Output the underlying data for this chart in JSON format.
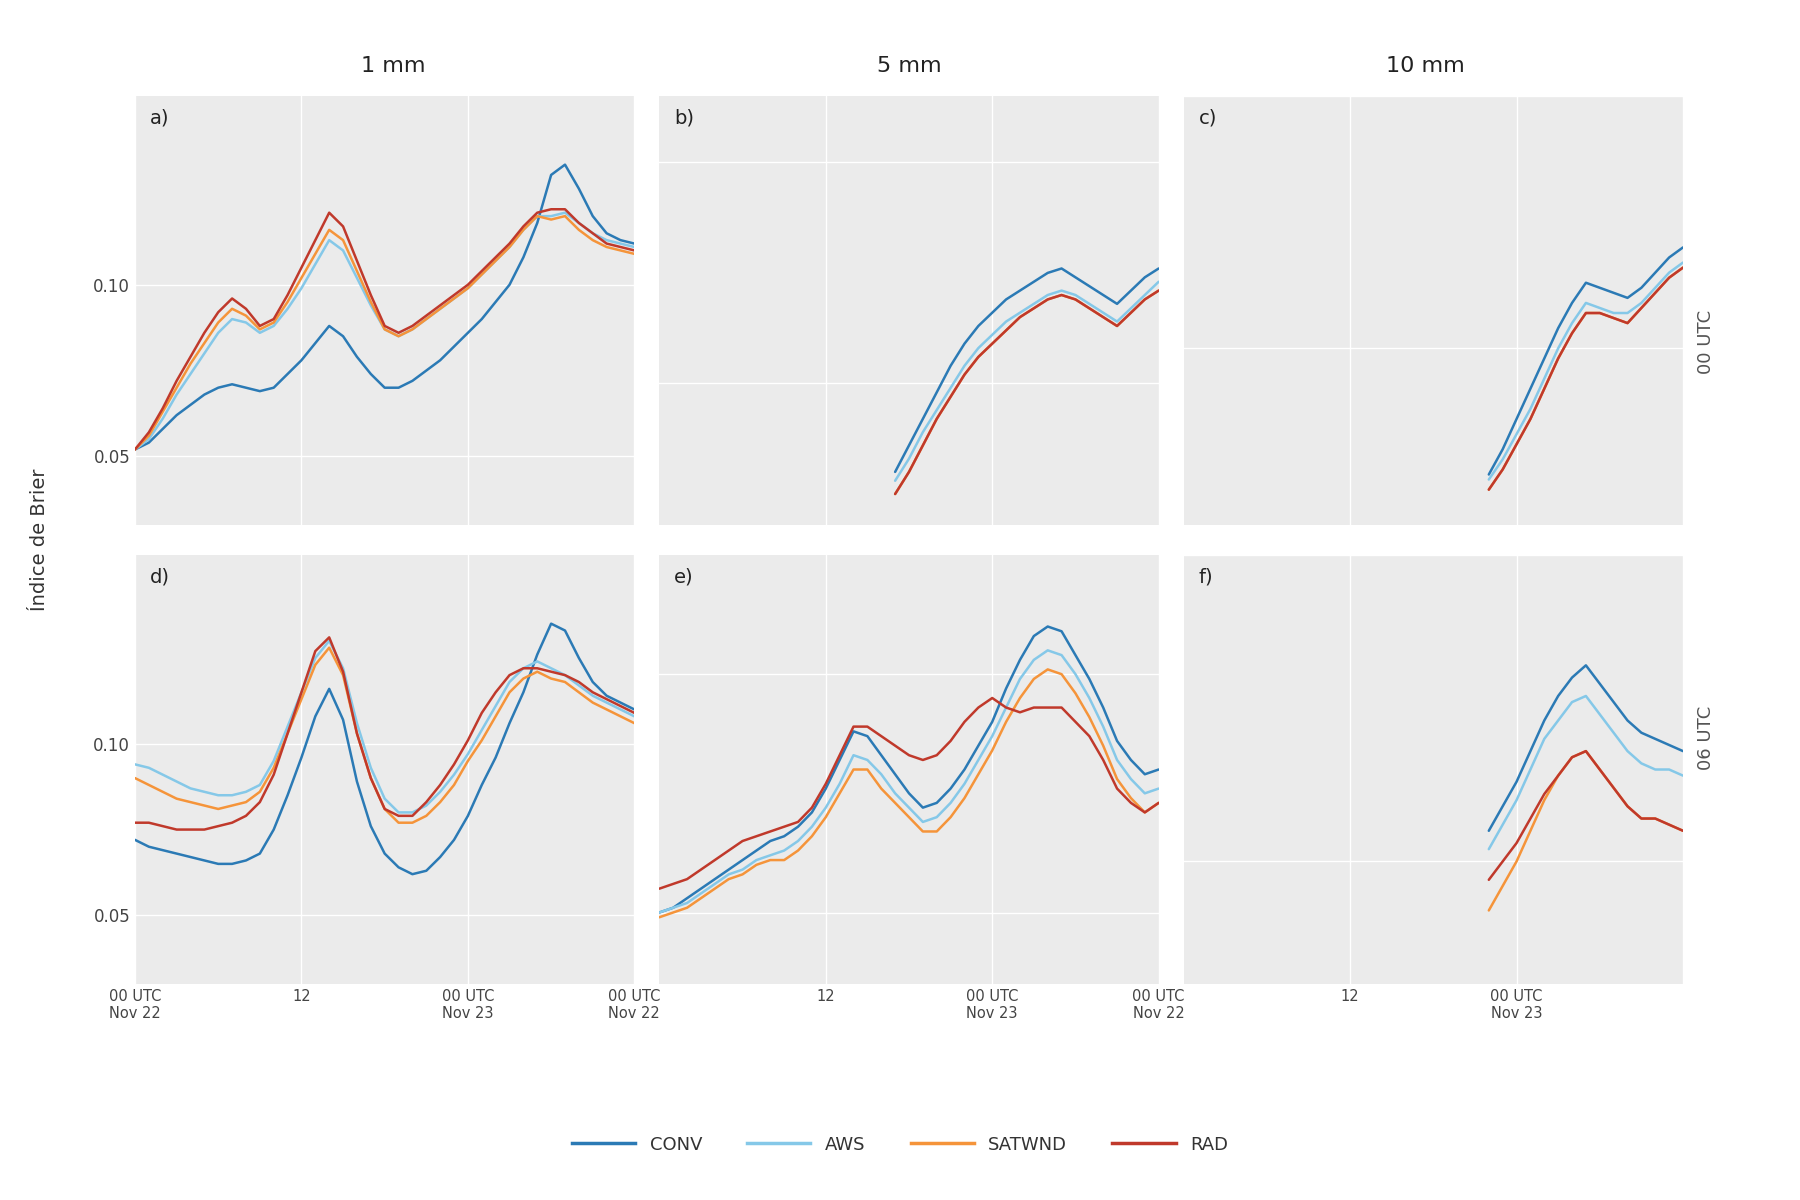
{
  "col_titles": [
    "1 mm",
    "5 mm",
    "10 mm"
  ],
  "row_labels": [
    "00 UTC",
    "06 UTC"
  ],
  "ylabel": "Índice de Brier",
  "line_colors": {
    "CONV": "#2b7ab5",
    "AWS": "#85c8e8",
    "SATWND": "#f5943a",
    "RAD": "#c0392b"
  },
  "line_width": 1.8,
  "bg_color": "#ebebeb",
  "grid_color": "#ffffff",
  "yticks": [
    0.05,
    0.1
  ],
  "data": {
    "a": {
      "CONV": [
        0.052,
        0.054,
        0.058,
        0.062,
        0.065,
        0.068,
        0.07,
        0.071,
        0.07,
        0.069,
        0.07,
        0.074,
        0.078,
        0.083,
        0.088,
        0.085,
        0.079,
        0.074,
        0.07,
        0.07,
        0.072,
        0.075,
        0.078,
        0.082,
        0.086,
        0.09,
        0.095,
        0.1,
        0.108,
        0.118,
        0.132,
        0.135,
        0.128,
        0.12,
        0.115,
        0.113,
        0.112
      ],
      "AWS": [
        0.052,
        0.055,
        0.061,
        0.068,
        0.074,
        0.08,
        0.086,
        0.09,
        0.089,
        0.086,
        0.088,
        0.093,
        0.099,
        0.106,
        0.113,
        0.11,
        0.102,
        0.094,
        0.087,
        0.085,
        0.087,
        0.09,
        0.093,
        0.096,
        0.099,
        0.103,
        0.107,
        0.111,
        0.116,
        0.12,
        0.12,
        0.121,
        0.118,
        0.115,
        0.113,
        0.112,
        0.111
      ],
      "SATWND": [
        0.052,
        0.056,
        0.063,
        0.07,
        0.077,
        0.083,
        0.089,
        0.093,
        0.091,
        0.087,
        0.089,
        0.095,
        0.102,
        0.109,
        0.116,
        0.113,
        0.104,
        0.095,
        0.087,
        0.085,
        0.087,
        0.09,
        0.093,
        0.096,
        0.099,
        0.103,
        0.107,
        0.111,
        0.116,
        0.12,
        0.119,
        0.12,
        0.116,
        0.113,
        0.111,
        0.11,
        0.109
      ],
      "RAD": [
        0.052,
        0.057,
        0.064,
        0.072,
        0.079,
        0.086,
        0.092,
        0.096,
        0.093,
        0.088,
        0.09,
        0.097,
        0.105,
        0.113,
        0.121,
        0.117,
        0.107,
        0.097,
        0.088,
        0.086,
        0.088,
        0.091,
        0.094,
        0.097,
        0.1,
        0.104,
        0.108,
        0.112,
        0.117,
        0.121,
        0.122,
        0.122,
        0.118,
        0.115,
        0.112,
        0.111,
        0.11
      ]
    },
    "b": {
      "CONV": [
        null,
        null,
        null,
        null,
        null,
        null,
        null,
        null,
        null,
        null,
        null,
        null,
        null,
        null,
        null,
        null,
        null,
        0.03,
        0.036,
        0.042,
        0.048,
        0.054,
        0.059,
        0.063,
        0.066,
        0.069,
        0.071,
        0.073,
        0.075,
        0.076,
        0.074,
        0.072,
        0.07,
        0.068,
        0.071,
        0.074,
        0.076
      ],
      "AWS": [
        null,
        null,
        null,
        null,
        null,
        null,
        null,
        null,
        null,
        null,
        null,
        null,
        null,
        null,
        null,
        null,
        null,
        0.028,
        0.033,
        0.039,
        0.044,
        0.049,
        0.054,
        0.058,
        0.061,
        0.064,
        0.066,
        0.068,
        0.07,
        0.071,
        0.07,
        0.068,
        0.066,
        0.064,
        0.067,
        0.07,
        0.073
      ],
      "SATWND": [
        null,
        null,
        null,
        null,
        null,
        null,
        null,
        null,
        null,
        null,
        null,
        null,
        null,
        null,
        null,
        null,
        null,
        0.025,
        0.03,
        0.036,
        0.042,
        0.047,
        0.052,
        0.056,
        0.059,
        0.062,
        0.065,
        0.067,
        0.069,
        0.07,
        0.069,
        0.067,
        0.065,
        0.063,
        0.066,
        0.069,
        0.071
      ],
      "RAD": [
        null,
        null,
        null,
        null,
        null,
        null,
        null,
        null,
        null,
        null,
        null,
        null,
        null,
        null,
        null,
        null,
        null,
        0.025,
        0.03,
        0.036,
        0.042,
        0.047,
        0.052,
        0.056,
        0.059,
        0.062,
        0.065,
        0.067,
        0.069,
        0.07,
        0.069,
        0.067,
        0.065,
        0.063,
        0.066,
        0.069,
        0.071
      ]
    },
    "c": {
      "CONV": [
        null,
        null,
        null,
        null,
        null,
        null,
        null,
        null,
        null,
        null,
        null,
        null,
        null,
        null,
        null,
        null,
        null,
        null,
        null,
        null,
        null,
        null,
        0.025,
        0.03,
        0.036,
        0.042,
        0.048,
        0.054,
        0.059,
        0.063,
        0.062,
        0.061,
        0.06,
        0.062,
        0.065,
        0.068,
        0.07
      ],
      "AWS": [
        null,
        null,
        null,
        null,
        null,
        null,
        null,
        null,
        null,
        null,
        null,
        null,
        null,
        null,
        null,
        null,
        null,
        null,
        null,
        null,
        null,
        null,
        0.024,
        0.028,
        0.033,
        0.038,
        0.044,
        0.05,
        0.055,
        0.059,
        0.058,
        0.057,
        0.057,
        0.059,
        0.062,
        0.065,
        0.067
      ],
      "SATWND": [
        null,
        null,
        null,
        null,
        null,
        null,
        null,
        null,
        null,
        null,
        null,
        null,
        null,
        null,
        null,
        null,
        null,
        null,
        null,
        null,
        null,
        null,
        0.022,
        0.026,
        0.031,
        0.036,
        0.042,
        0.048,
        0.053,
        0.057,
        0.057,
        0.056,
        0.055,
        0.058,
        0.061,
        0.064,
        0.066
      ],
      "RAD": [
        null,
        null,
        null,
        null,
        null,
        null,
        null,
        null,
        null,
        null,
        null,
        null,
        null,
        null,
        null,
        null,
        null,
        null,
        null,
        null,
        null,
        null,
        0.022,
        0.026,
        0.031,
        0.036,
        0.042,
        0.048,
        0.053,
        0.057,
        0.057,
        0.056,
        0.055,
        0.058,
        0.061,
        0.064,
        0.066
      ]
    },
    "d": {
      "CONV": [
        0.072,
        0.07,
        0.069,
        0.068,
        0.067,
        0.066,
        0.065,
        0.065,
        0.066,
        0.068,
        0.075,
        0.085,
        0.096,
        0.108,
        0.116,
        0.107,
        0.089,
        0.076,
        0.068,
        0.064,
        0.062,
        0.063,
        0.067,
        0.072,
        0.079,
        0.088,
        0.096,
        0.106,
        0.115,
        0.126,
        0.135,
        0.133,
        0.125,
        0.118,
        0.114,
        0.112,
        0.11
      ],
      "AWS": [
        0.094,
        0.093,
        0.091,
        0.089,
        0.087,
        0.086,
        0.085,
        0.085,
        0.086,
        0.088,
        0.095,
        0.105,
        0.115,
        0.125,
        0.13,
        0.122,
        0.106,
        0.093,
        0.084,
        0.08,
        0.08,
        0.082,
        0.086,
        0.091,
        0.097,
        0.104,
        0.111,
        0.118,
        0.122,
        0.124,
        0.122,
        0.12,
        0.117,
        0.114,
        0.112,
        0.11,
        0.108
      ],
      "SATWND": [
        0.09,
        0.088,
        0.086,
        0.084,
        0.083,
        0.082,
        0.081,
        0.082,
        0.083,
        0.086,
        0.093,
        0.103,
        0.113,
        0.123,
        0.128,
        0.12,
        0.103,
        0.09,
        0.081,
        0.077,
        0.077,
        0.079,
        0.083,
        0.088,
        0.095,
        0.101,
        0.108,
        0.115,
        0.119,
        0.121,
        0.119,
        0.118,
        0.115,
        0.112,
        0.11,
        0.108,
        0.106
      ],
      "RAD": [
        0.077,
        0.077,
        0.076,
        0.075,
        0.075,
        0.075,
        0.076,
        0.077,
        0.079,
        0.083,
        0.091,
        0.103,
        0.115,
        0.127,
        0.131,
        0.121,
        0.103,
        0.09,
        0.081,
        0.079,
        0.079,
        0.083,
        0.088,
        0.094,
        0.101,
        0.109,
        0.115,
        0.12,
        0.122,
        0.122,
        0.121,
        0.12,
        0.118,
        0.115,
        0.113,
        0.111,
        0.109
      ]
    },
    "e": {
      "CONV": [
        0.05,
        0.051,
        0.053,
        0.055,
        0.057,
        0.059,
        0.061,
        0.063,
        0.065,
        0.066,
        0.068,
        0.071,
        0.076,
        0.082,
        0.088,
        0.087,
        0.083,
        0.079,
        0.075,
        0.072,
        0.073,
        0.076,
        0.08,
        0.085,
        0.09,
        0.097,
        0.103,
        0.108,
        0.11,
        0.109,
        0.104,
        0.099,
        0.093,
        0.086,
        0.082,
        0.079,
        0.08
      ],
      "AWS": [
        0.05,
        0.051,
        0.052,
        0.054,
        0.056,
        0.058,
        0.059,
        0.061,
        0.062,
        0.063,
        0.065,
        0.068,
        0.072,
        0.077,
        0.083,
        0.082,
        0.079,
        0.075,
        0.072,
        0.069,
        0.07,
        0.073,
        0.077,
        0.082,
        0.087,
        0.093,
        0.099,
        0.103,
        0.105,
        0.104,
        0.1,
        0.095,
        0.089,
        0.082,
        0.078,
        0.075,
        0.076
      ],
      "SATWND": [
        0.049,
        0.05,
        0.051,
        0.053,
        0.055,
        0.057,
        0.058,
        0.06,
        0.061,
        0.061,
        0.063,
        0.066,
        0.07,
        0.075,
        0.08,
        0.08,
        0.076,
        0.073,
        0.07,
        0.067,
        0.067,
        0.07,
        0.074,
        0.079,
        0.084,
        0.09,
        0.095,
        0.099,
        0.101,
        0.1,
        0.096,
        0.091,
        0.085,
        0.078,
        0.074,
        0.071,
        0.073
      ],
      "RAD": [
        0.055,
        0.056,
        0.057,
        0.059,
        0.061,
        0.063,
        0.065,
        0.066,
        0.067,
        0.068,
        0.069,
        0.072,
        0.077,
        0.083,
        0.089,
        0.089,
        0.087,
        0.085,
        0.083,
        0.082,
        0.083,
        0.086,
        0.09,
        0.093,
        0.095,
        0.093,
        0.092,
        0.093,
        0.093,
        0.093,
        0.09,
        0.087,
        0.082,
        0.076,
        0.073,
        0.071,
        0.073
      ]
    },
    "f": {
      "CONV": [
        null,
        null,
        null,
        null,
        null,
        null,
        null,
        null,
        null,
        null,
        null,
        null,
        null,
        null,
        null,
        null,
        null,
        null,
        null,
        null,
        null,
        null,
        0.055,
        0.059,
        0.063,
        0.068,
        0.073,
        0.077,
        0.08,
        0.082,
        0.079,
        0.076,
        0.073,
        0.071,
        0.07,
        0.069,
        0.068
      ],
      "AWS": [
        null,
        null,
        null,
        null,
        null,
        null,
        null,
        null,
        null,
        null,
        null,
        null,
        null,
        null,
        null,
        null,
        null,
        null,
        null,
        null,
        null,
        null,
        0.052,
        0.056,
        0.06,
        0.065,
        0.07,
        0.073,
        0.076,
        0.077,
        0.074,
        0.071,
        0.068,
        0.066,
        0.065,
        0.065,
        0.064
      ],
      "SATWND": [
        null,
        null,
        null,
        null,
        null,
        null,
        null,
        null,
        null,
        null,
        null,
        null,
        null,
        null,
        null,
        null,
        null,
        null,
        null,
        null,
        null,
        null,
        0.042,
        0.046,
        0.05,
        0.055,
        0.06,
        0.064,
        0.067,
        0.068,
        0.065,
        0.062,
        0.059,
        0.057,
        0.057,
        0.056,
        0.055
      ],
      "RAD": [
        null,
        null,
        null,
        null,
        null,
        null,
        null,
        null,
        null,
        null,
        null,
        null,
        null,
        null,
        null,
        null,
        null,
        null,
        null,
        null,
        null,
        null,
        0.047,
        0.05,
        0.053,
        0.057,
        0.061,
        0.064,
        0.067,
        0.068,
        0.065,
        0.062,
        0.059,
        0.057,
        0.057,
        0.056,
        0.055
      ]
    }
  },
  "xtick_labels": {
    "col0": [
      "00 UTC\nNov 22",
      "12",
      "00 UTC\nNov 23",
      "00 UTC\nNov 22"
    ],
    "col1": [
      "12",
      "00 UTC\nNov 23",
      "00 UTC\nNov 22"
    ],
    "col2": [
      "12",
      "00 UTC\nNov 23",
      ""
    ]
  },
  "xtick_pos": {
    "col0": [
      0,
      12,
      24,
      36
    ],
    "col1": [
      12,
      24,
      36
    ],
    "col2": [
      12,
      24,
      36
    ]
  }
}
